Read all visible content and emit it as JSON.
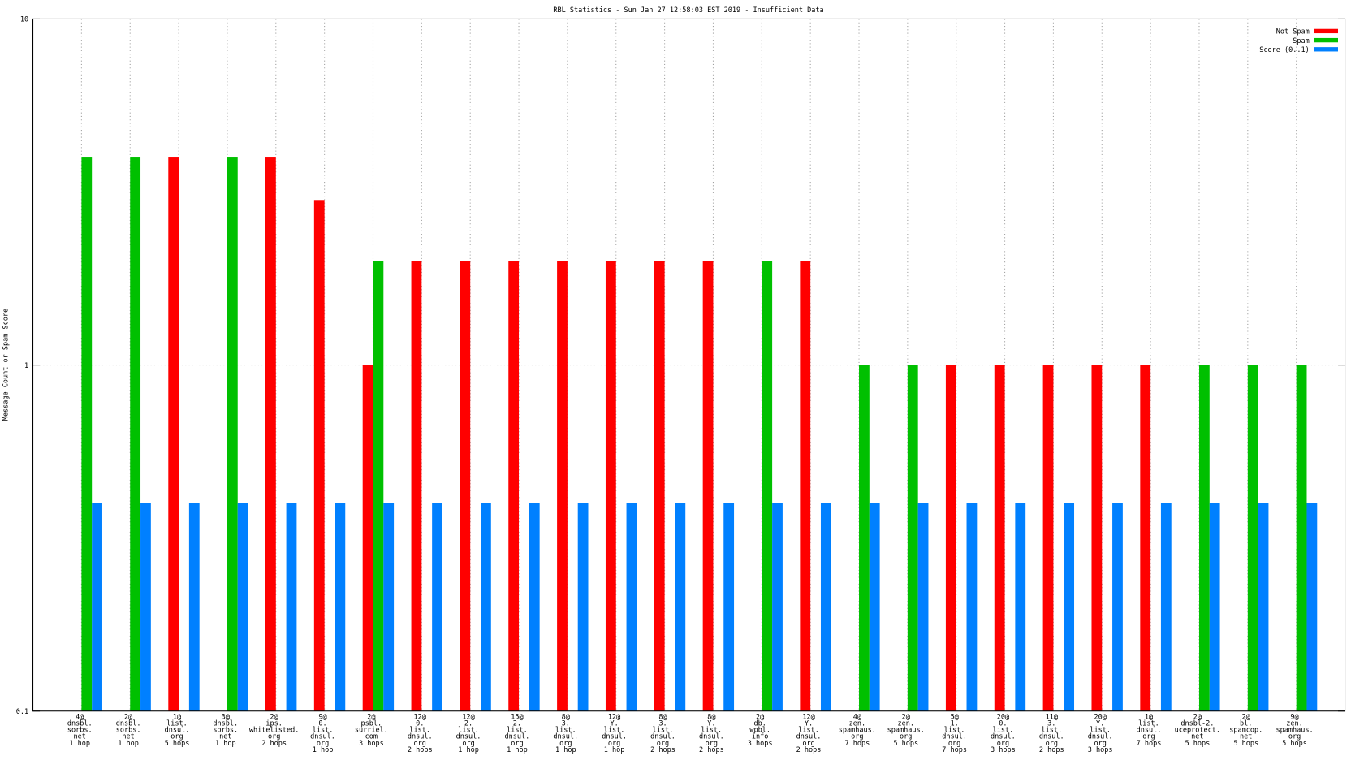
{
  "chart_data": {
    "type": "bar",
    "title": "RBL Statistics - Sun Jan 27 12:58:03 EST 2019 - Insufficient Data",
    "y_label": "Message Count or Spam Score",
    "log_scale": true,
    "grid": true,
    "legend": "top-right",
    "ylim": [
      0.1,
      10
    ],
    "yticks": [
      0.1,
      1,
      10
    ],
    "categories": [
      "4@\ndnsbl.\nsorbs.\nnet\n1 hop",
      "2@\ndnsbl.\nsorbs.\nnet\n1 hop",
      "1@\nlist.\ndnsul.\norg\n5 hops",
      "3@\ndnsbl.\nsorbs.\nnet\n1 hop",
      "2@\nips.\nwhitelisted.\norg\n2 hops",
      "9@\n0.\nlist.\ndnsul.\norg\n1 hop",
      "2@\npsbl.\nsurriel.\ncom\n3 hops",
      "12@\n0.\nlist.\ndnsul.\norg\n2 hops",
      "12@\n2.\nlist.\ndnsul.\norg\n1 hop",
      "15@\n2.\nlist.\ndnsul.\norg\n1 hop",
      "8@\n3.\nlist.\ndnsul.\norg\n1 hop",
      "12@\nY.\nlist.\ndnsul.\norg\n1 hop",
      "8@\n3.\nlist.\ndnsul.\norg\n2 hops",
      "8@\nY.\nlist.\ndnsul.\norg\n2 hops",
      "2@\ndb.\nwpbl.\ninfo\n3 hops",
      "12@\nY.\nlist.\ndnsul.\norg\n2 hops",
      "4@\nzen.\nspamhaus.\norg\n7 hops",
      "2@\nzen.\nspamhaus.\norg\n5 hops",
      "5@\n1.\nlist.\ndnsul.\norg\n7 hops",
      "20@\n0.\nlist.\ndnsul.\norg\n3 hops",
      "11@\n3.\nlist.\ndnsul.\norg\n2 hops",
      "20@\nY.\nlist.\ndnsul.\norg\n3 hops",
      "1@\nlist.\ndnsul.\norg\n7 hops",
      "2@\ndnsbl-2.\nuceprotect.\nnet\n5 hops",
      "2@\nbl.\nspamcop.\nnet\n5 hops",
      "9@\nzen.\nspamhaus.\norg\n5 hops"
    ],
    "series": [
      {
        "name": "Not Spam",
        "color": "#ff0000",
        "values": [
          null,
          null,
          4,
          null,
          4,
          3,
          1,
          2,
          2,
          2,
          2,
          2,
          2,
          2,
          null,
          2,
          null,
          null,
          1,
          1,
          1,
          1,
          1,
          null,
          null,
          null
        ]
      },
      {
        "name": "Spam",
        "color": "#00c000",
        "values": [
          4,
          4,
          null,
          4,
          null,
          null,
          2,
          null,
          null,
          null,
          null,
          null,
          null,
          null,
          2,
          null,
          1,
          1,
          null,
          null,
          null,
          null,
          null,
          1,
          1,
          1
        ]
      },
      {
        "name": "Score (0..1)",
        "color": "#0080ff",
        "values": [
          0.4,
          0.4,
          0.4,
          0.4,
          0.4,
          0.4,
          0.4,
          0.4,
          0.4,
          0.4,
          0.4,
          0.4,
          0.4,
          0.4,
          0.4,
          0.4,
          0.4,
          0.4,
          0.4,
          0.4,
          0.4,
          0.4,
          0.4,
          0.4,
          0.4,
          0.4
        ]
      }
    ]
  }
}
